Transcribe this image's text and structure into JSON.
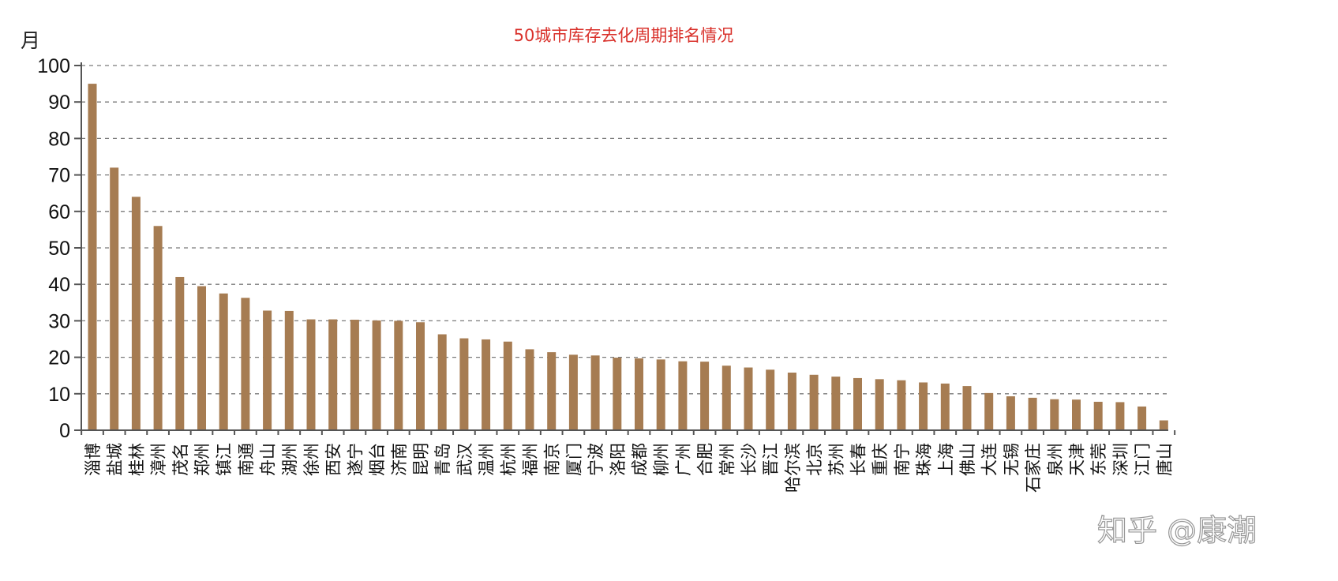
{
  "watermark": "知乎 @康潮",
  "chart_data": {
    "type": "bar",
    "title": "50城市库存去化周期排名情况",
    "ylabel": "月",
    "xlabel": "",
    "ylim": [
      0,
      100
    ],
    "yticks": [
      0,
      10,
      20,
      30,
      40,
      50,
      60,
      70,
      80,
      90,
      100
    ],
    "grid": true,
    "bar_color": "#a67c52",
    "title_color": "#d9312b",
    "categories": [
      "淄博",
      "盐城",
      "桂林",
      "漳州",
      "茂名",
      "郑州",
      "镇江",
      "南通",
      "舟山",
      "湖州",
      "徐州",
      "西安",
      "遂宁",
      "烟台",
      "济南",
      "昆明",
      "青岛",
      "武汉",
      "温州",
      "杭州",
      "福州",
      "南京",
      "厦门",
      "宁波",
      "洛阳",
      "成都",
      "柳州",
      "广州",
      "合肥",
      "常州",
      "长沙",
      "晋江",
      "哈尔滨",
      "北京",
      "苏州",
      "长春",
      "重庆",
      "南宁",
      "珠海",
      "上海",
      "佛山",
      "大连",
      "无锡",
      "石家庄",
      "泉州",
      "天津",
      "东莞",
      "深圳",
      "江门",
      "唐山"
    ],
    "values": [
      95,
      72,
      64,
      56,
      42,
      39.5,
      37.5,
      36.3,
      32.8,
      32.7,
      30.4,
      30.4,
      30.3,
      30.1,
      30.0,
      29.6,
      26.3,
      25.2,
      24.9,
      24.3,
      22.2,
      21.4,
      20.7,
      20.5,
      19.9,
      19.7,
      19.4,
      18.9,
      18.8,
      17.7,
      17.2,
      16.6,
      15.8,
      15.2,
      14.7,
      14.3,
      14.0,
      13.7,
      13.1,
      12.8,
      12.1,
      10.2,
      9.3,
      8.9,
      8.5,
      8.4,
      7.8,
      7.7,
      6.5,
      2.7
    ]
  }
}
